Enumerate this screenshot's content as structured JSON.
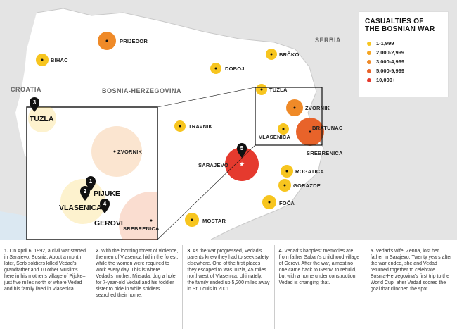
{
  "countries": {
    "serbia": "SERBIA",
    "croatia": "CROATIA",
    "bosnia": "BOSNIA-HERZEGOVINA"
  },
  "legend": {
    "title_line1": "CASUALTIES OF",
    "title_line2": "THE BOSNIAN WAR",
    "items": [
      {
        "label": "1-1,999",
        "color": "#f7c51f"
      },
      {
        "label": "2,000-2,999",
        "color": "#f6a623"
      },
      {
        "label": "3,000-4,999",
        "color": "#ef8a28"
      },
      {
        "label": "5,000-9,999",
        "color": "#e8632a"
      },
      {
        "label": "10,000+",
        "color": "#e53a2e"
      }
    ]
  },
  "cities": {
    "prijedor": "PRIJEDOR",
    "bihac": "BIHAC",
    "brcko": "BRČKO",
    "doboj": "DOBOJ",
    "tuzla": "TUZLA",
    "zvornik": "ZVORNIK",
    "vlasenica": "VLASENICA",
    "bratunac": "BRATUNAC",
    "srebrenica": "SREBRENICA",
    "travnik": "TRAVNIK",
    "sarajevo": "SARAJEVO",
    "rogatica": "ROGATICA",
    "gorazde": "GORAZDE",
    "foca": "FOČA",
    "mostar": "MOSTAR"
  },
  "inset": {
    "tuzla": "TUZLA",
    "zvornik": "ZVORNIK",
    "pijuke": "PIJUKE",
    "vlasenica": "VLASENICA",
    "gerovi": "GEROVI",
    "srebrenica": "SREBRENICA",
    "markers": [
      "1",
      "2",
      "3",
      "4"
    ]
  },
  "sarajevo_marker": "5",
  "notes": [
    {
      "num": "1.",
      "text": "On April 6, 1992, a civil war started in Sarajevo, Bosnia. About a month later, Serb soldiers killed Vedad's grandfather and 10 other Muslims here in his mother's village of Pijuke–just five miles north of where Vedad and his family lived in Vlasenica."
    },
    {
      "num": "2.",
      "text": "With the looming threat of violence, the men of Vlasenica hid in the forest, while the women were required to work every day. This is where Vedad's mother, Mirsada, dug a hole for 7-year-old Vedad and his toddler sister to hide in while soldiers searched their home."
    },
    {
      "num": "3.",
      "text": "As the war progressed, Vedad's parents knew they had to seek safety elsewhere. One of the first places they escaped to was Tuzla, 45 miles northwest of Vlasenica. Ultimately, the family ended up 5,200 miles away in St. Louis in 2001."
    },
    {
      "num": "4.",
      "text": "Vedad's happiest memories are from father Saban's childhood village of Gerovi. After the war, almost no one came back to Gerovi to rebuild, but with a home under construction, Vedad is changing that."
    },
    {
      "num": "5.",
      "text": "Vedad's wife, Zenna, lost her father in Sarajevo. Twenty years after the war ended, she and Vedad returned together to celebrate Bosnia-Herzegovina's first trip to the World Cup–after Vedad scored the goal that clinched the spot."
    }
  ]
}
